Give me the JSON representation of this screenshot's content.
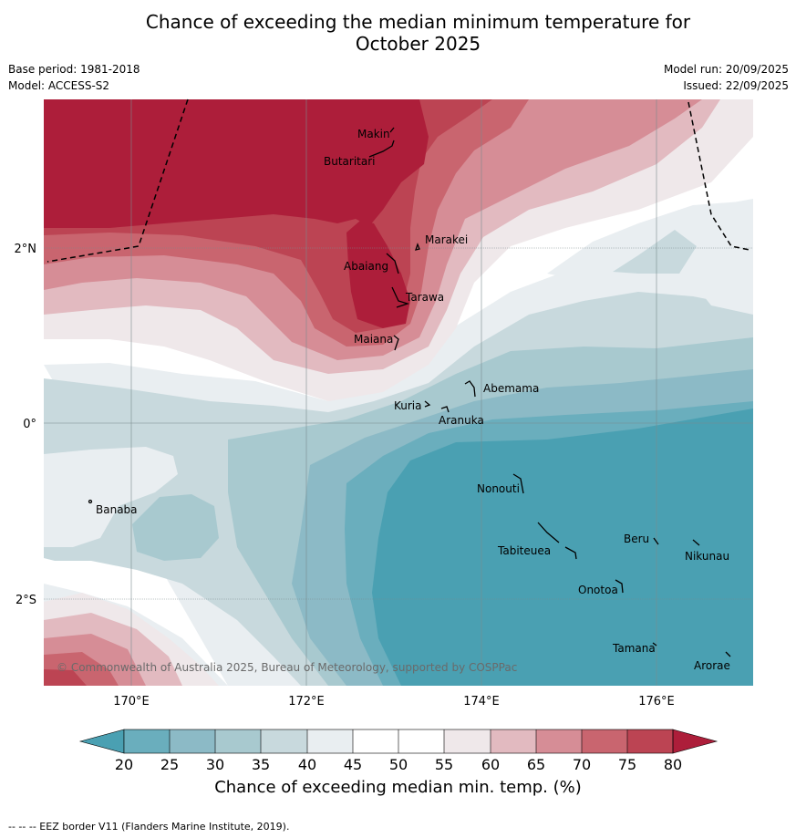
{
  "title": {
    "line1": "Chance of exceeding the median minimum temperature for",
    "line2": "October 2025"
  },
  "meta": {
    "base_period": "Base period: 1981-2018",
    "model": "Model: ACCESS-S2",
    "model_run": "Model run: 20/09/2025",
    "issued": "Issued: 22/09/2025"
  },
  "axes": {
    "lat_labels": [
      "2°N",
      "0°",
      "2°S"
    ],
    "lon_labels": [
      "170°E",
      "172°E",
      "174°E",
      "176°E"
    ]
  },
  "places": [
    {
      "name": "Makin"
    },
    {
      "name": "Butaritari"
    },
    {
      "name": "Marakei"
    },
    {
      "name": "Abaiang"
    },
    {
      "name": "Tarawa"
    },
    {
      "name": "Maiana"
    },
    {
      "name": "Abemama"
    },
    {
      "name": "Kuria"
    },
    {
      "name": "Aranuka"
    },
    {
      "name": "Banaba"
    },
    {
      "name": "Nonouti"
    },
    {
      "name": "Beru"
    },
    {
      "name": "Nikunau"
    },
    {
      "name": "Tabiteuea"
    },
    {
      "name": "Onotoa"
    },
    {
      "name": "Tamana"
    },
    {
      "name": "Arorae"
    }
  ],
  "copyright": "© Commonwealth of Australia 2025, Bureau of Meteorology, supported by COSPPac",
  "colorbar": {
    "ticks": [
      "20",
      "25",
      "30",
      "35",
      "40",
      "45",
      "50",
      "55",
      "60",
      "65",
      "70",
      "75",
      "80"
    ],
    "label": "Chance of exceeding median min. temp. (%)",
    "colors": {
      "below20": "#4aa0b2",
      "b20_25": "#6aaebd",
      "b25_30": "#8cbac6",
      "b30_35": "#a8c9cf",
      "b35_40": "#c8d9dd",
      "b40_45": "#e9eef1",
      "b45_55": "#ffffff",
      "b55_60": "#efe8ea",
      "b60_65": "#e2bac0",
      "b65_70": "#d68d96",
      "b70_75": "#c9656f",
      "b75_80": "#bc4453",
      "above80": "#ad1e3a"
    }
  },
  "footer": "--  --  -- EEZ border V11 (Flanders Marine Institute, 2019)."
}
